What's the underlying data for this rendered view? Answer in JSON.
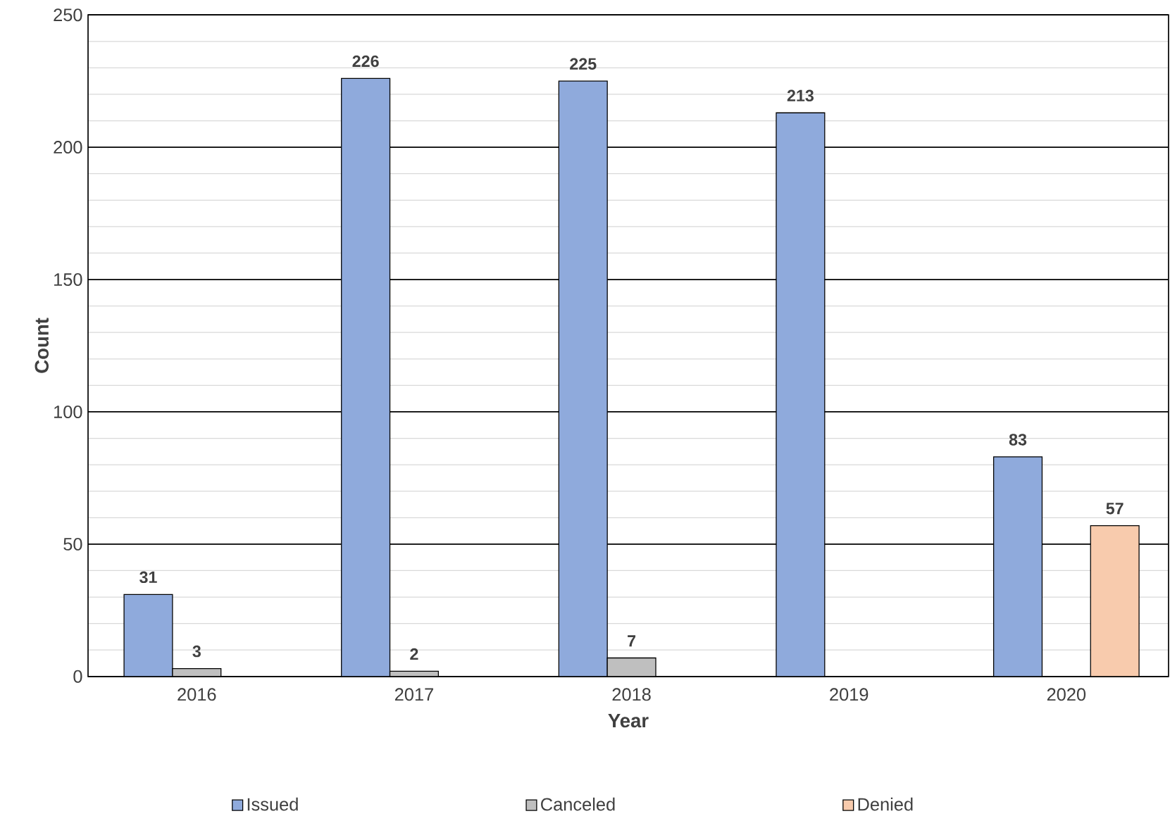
{
  "chart_data": {
    "type": "bar",
    "xlabel": "Year",
    "ylabel": "Count",
    "categories": [
      "2016",
      "2017",
      "2018",
      "2019",
      "2020"
    ],
    "series": [
      {
        "name": "Issued",
        "color": "#8faadc",
        "values": [
          31,
          226,
          225,
          213,
          83
        ]
      },
      {
        "name": "Canceled",
        "color": "#bfbfbf",
        "values": [
          3,
          2,
          7,
          null,
          null
        ]
      },
      {
        "name": "Denied",
        "color": "#f8cbad",
        "values": [
          null,
          null,
          null,
          null,
          57
        ]
      }
    ],
    "ylim": [
      0,
      250
    ],
    "yticks": [
      0,
      50,
      100,
      150,
      200,
      250
    ],
    "grid": "y",
    "legend": "bottom",
    "data_labels": true
  }
}
